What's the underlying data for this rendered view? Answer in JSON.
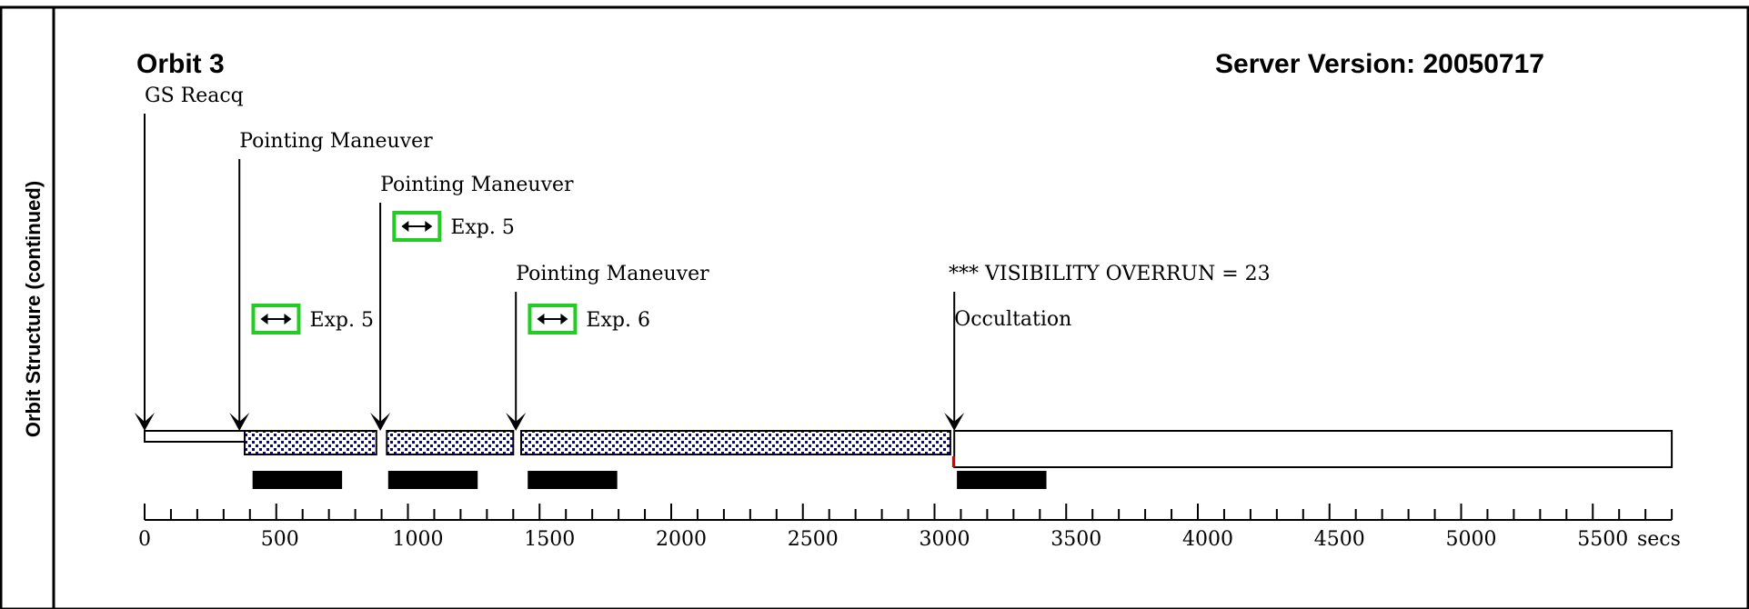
{
  "side_title": "Orbit Structure (continued)",
  "orbit_title": "Orbit 3",
  "server_version": "Server Version: 20050717",
  "axis": {
    "min": 0,
    "max": 5800,
    "major_step": 500,
    "minor_step": 100,
    "tick_labels": [
      "0",
      "500",
      "1000",
      "1500",
      "2000",
      "2500",
      "3000",
      "3500",
      "4000",
      "4500",
      "5000",
      "5500"
    ],
    "unit": "secs"
  },
  "events": [
    {
      "label": "GS Reacq",
      "t": 0
    },
    {
      "label": "Pointing Maneuver",
      "t": 360
    },
    {
      "label": "Pointing Maneuver",
      "t": 895
    },
    {
      "label": "Pointing Maneuver",
      "t": 1410
    },
    {
      "label": "Occultation",
      "t": 3075
    }
  ],
  "exposures": [
    {
      "label": "Exp. 5",
      "t": 385
    },
    {
      "label": "Exp. 5",
      "t": 920
    },
    {
      "label": "Exp. 6",
      "t": 1435
    }
  ],
  "warning": "*** VISIBILITY OVERRUN = 23",
  "timeline": {
    "white_segments": [
      [
        0,
        380
      ],
      [
        3075,
        5800
      ]
    ],
    "dotted_segments": [
      [
        380,
        880
      ],
      [
        920,
        1400
      ],
      [
        1430,
        3060
      ]
    ],
    "black_bars": [
      [
        410,
        750
      ],
      [
        925,
        1265
      ],
      [
        1455,
        1795
      ],
      [
        3085,
        3425
      ]
    ],
    "overrun_marker_t": 3060
  },
  "colors": {
    "exposure_box": "#22cc22",
    "dot_fill": "#0000cc",
    "overrun_marker": "#dd0000",
    "ink": "#000000"
  }
}
